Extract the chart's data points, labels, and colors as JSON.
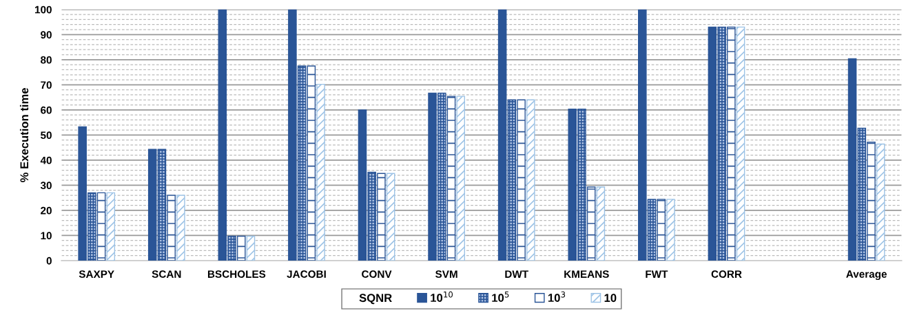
{
  "chart_data": {
    "type": "bar",
    "ylabel": "% Execution time",
    "legend_title": "SQNR",
    "categories": [
      "SAXPY",
      "SCAN",
      "BSCHOLES",
      "JACOBI",
      "CONV",
      "SVM",
      "DWT",
      "KMEANS",
      "FWT",
      "CORR",
      null,
      "Average"
    ],
    "series": [
      {
        "name": "10$^{10}$",
        "color": "#2a5597",
        "values": [
          53.3,
          44.3,
          100,
          100,
          60,
          66.7,
          100,
          60.3,
          100,
          93,
          null,
          80.4
        ]
      },
      {
        "name": "10$^{5}$",
        "color": "#2a5597",
        "values": [
          27,
          44.3,
          9.7,
          77.5,
          35.2,
          66.7,
          64,
          60.3,
          24.4,
          93,
          null,
          52.7
        ]
      },
      {
        "name": "10$^{3}$",
        "color": "#2a5597",
        "values": [
          27,
          26,
          9.7,
          77.5,
          34.7,
          65.4,
          64,
          29.3,
          24.4,
          93,
          null,
          47.2
        ]
      },
      {
        "name": "10",
        "color": "#9dc3e6",
        "values": [
          27,
          26,
          9.7,
          70.2,
          34.7,
          65.4,
          64,
          29.3,
          24.4,
          93,
          null,
          46.4
        ]
      }
    ],
    "ylim": [
      0,
      100
    ],
    "yticks": [
      0,
      10,
      20,
      30,
      40,
      50,
      60,
      70,
      80,
      90,
      100
    ],
    "grid": "y",
    "legend": "bottom"
  }
}
